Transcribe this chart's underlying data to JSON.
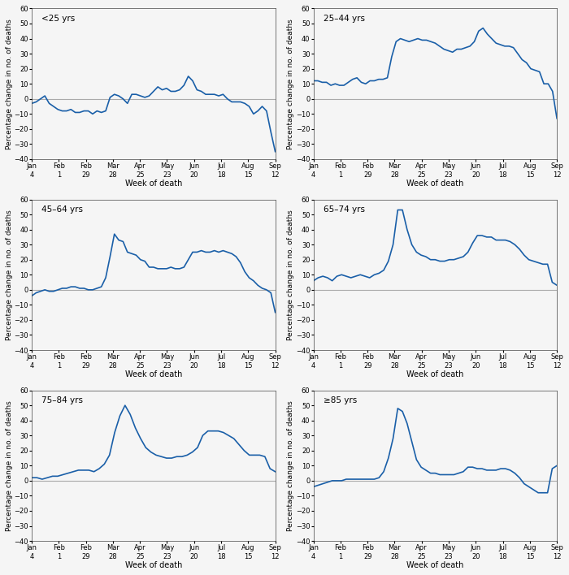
{
  "x_ticks_labels": [
    "Jan\n4",
    "Feb\n1",
    "Feb\n29",
    "Mar\n28",
    "Apr\n25",
    "May\n23",
    "Jun\n20",
    "Jul\n18",
    "Aug\n15",
    "Sep\n12"
  ],
  "x_tick_positions": [
    0,
    1,
    2,
    3,
    4,
    5,
    6,
    7,
    8,
    9
  ],
  "ylim": [
    -40,
    60
  ],
  "yticks": [
    -40,
    -30,
    -20,
    -10,
    0,
    10,
    20,
    30,
    40,
    50,
    60
  ],
  "xlabel": "Week of death",
  "ylabel": "Percentage change in no. of deaths",
  "line_color": "#1a5fa8",
  "zero_line_color": "#aaaaaa",
  "background_color": "#f5f5f5",
  "panels": [
    {
      "label": "<25 yrs",
      "y": [
        -3,
        -2,
        0,
        2,
        -3,
        -5,
        -7,
        -8,
        -8,
        -7,
        -9,
        -9,
        -8,
        -8,
        -10,
        -8,
        -9,
        -8,
        1,
        3,
        2,
        0,
        -3,
        3,
        3,
        2,
        1,
        2,
        5,
        8,
        6,
        7,
        5,
        5,
        6,
        9,
        15,
        12,
        6,
        5,
        3,
        3,
        3,
        2,
        3,
        0,
        -2,
        -2,
        -2,
        -3,
        -5,
        -10,
        -8,
        -5,
        -8,
        -22,
        -35
      ]
    },
    {
      "label": "25–44 yrs",
      "y": [
        12,
        12,
        11,
        11,
        9,
        10,
        9,
        9,
        11,
        13,
        14,
        11,
        10,
        12,
        12,
        13,
        13,
        14,
        28,
        38,
        40,
        39,
        38,
        39,
        40,
        39,
        39,
        38,
        37,
        35,
        33,
        32,
        31,
        33,
        33,
        34,
        35,
        38,
        45,
        47,
        43,
        40,
        37,
        36,
        35,
        35,
        34,
        30,
        26,
        24,
        20,
        19,
        18,
        10,
        10,
        5,
        -13
      ]
    },
    {
      "label": "45–64 yrs",
      "y": [
        -4,
        -2,
        -1,
        0,
        -1,
        -1,
        0,
        1,
        1,
        2,
        2,
        1,
        1,
        0,
        0,
        1,
        2,
        8,
        22,
        37,
        33,
        32,
        25,
        24,
        23,
        20,
        19,
        15,
        15,
        14,
        14,
        14,
        15,
        14,
        14,
        15,
        20,
        25,
        25,
        26,
        25,
        25,
        26,
        25,
        26,
        25,
        24,
        22,
        18,
        12,
        8,
        6,
        3,
        1,
        0,
        -2,
        -15
      ]
    },
    {
      "label": "65–74 yrs",
      "y": [
        6,
        8,
        9,
        8,
        6,
        9,
        10,
        9,
        8,
        9,
        10,
        9,
        8,
        10,
        11,
        13,
        19,
        30,
        53,
        53,
        40,
        30,
        25,
        23,
        22,
        20,
        20,
        19,
        19,
        20,
        20,
        21,
        22,
        25,
        31,
        36,
        36,
        35,
        35,
        33,
        33,
        33,
        32,
        30,
        27,
        23,
        20,
        19,
        18,
        17,
        17,
        5,
        3
      ]
    },
    {
      "label": "75–84 yrs",
      "y": [
        2,
        2,
        1,
        2,
        3,
        3,
        4,
        5,
        6,
        7,
        7,
        7,
        6,
        8,
        11,
        17,
        32,
        43,
        50,
        44,
        35,
        28,
        22,
        19,
        17,
        16,
        15,
        15,
        16,
        16,
        17,
        19,
        22,
        30,
        33,
        33,
        33,
        32,
        30,
        28,
        24,
        20,
        17,
        17,
        17,
        16,
        8,
        6
      ]
    },
    {
      "label": "≥85 yrs",
      "y": [
        -4,
        -3,
        -2,
        -1,
        0,
        0,
        0,
        1,
        1,
        1,
        1,
        1,
        1,
        1,
        2,
        6,
        15,
        28,
        48,
        46,
        38,
        26,
        14,
        9,
        7,
        5,
        5,
        4,
        4,
        4,
        4,
        5,
        6,
        9,
        9,
        8,
        8,
        7,
        7,
        7,
        8,
        8,
        7,
        5,
        2,
        -2,
        -4,
        -6,
        -8,
        -8,
        -8,
        8,
        10
      ]
    }
  ],
  "n_ticks": 10
}
